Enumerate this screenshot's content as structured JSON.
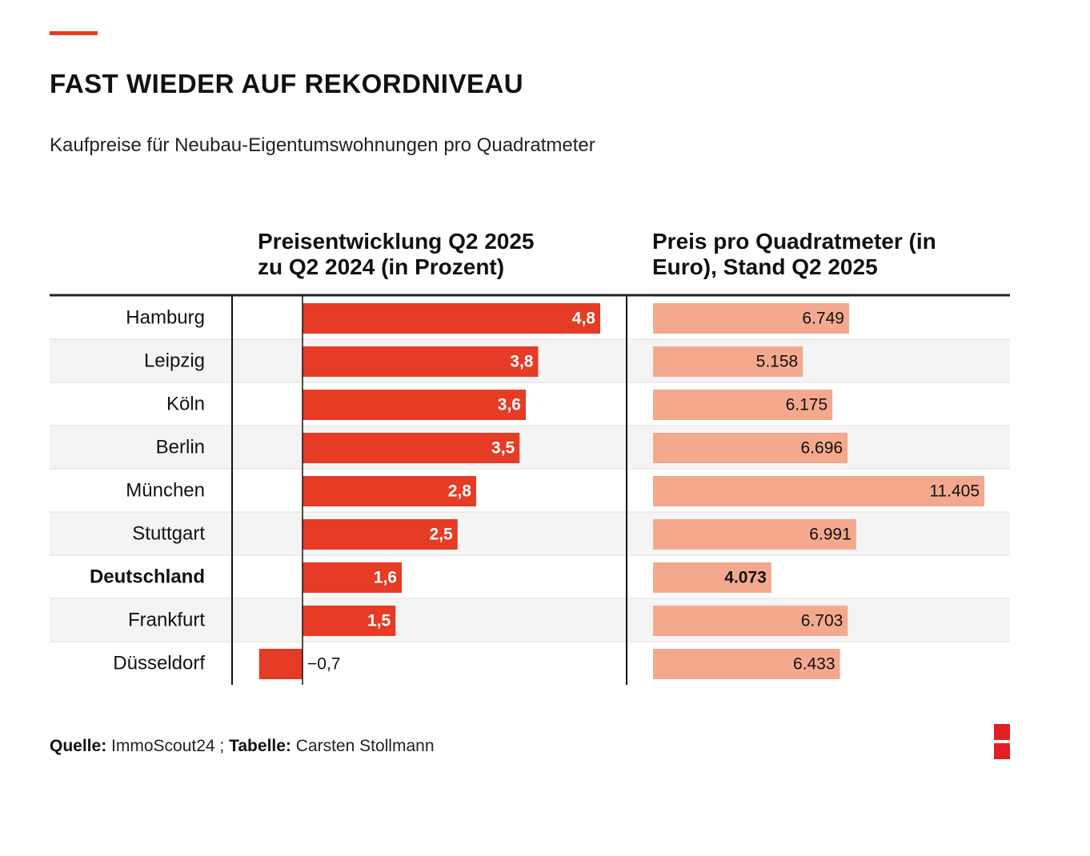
{
  "header": {
    "title": "FAST WIEDER AUF REKORDNIVEAU",
    "subtitle": "Kaufpreise für Neubau-Eigentumswohnungen pro Quadratmeter"
  },
  "columns": {
    "pct_heading_line1": "Preisentwicklung Q2 2025",
    "pct_heading_line2": "zu Q2 2024 (in Prozent)",
    "price_heading_line1": "Preis pro Quadratmeter (in",
    "price_heading_line2": "Euro), Stand Q2 2025"
  },
  "footer": {
    "source_label": "Quelle:",
    "source_value": "ImmoScout24 ;",
    "table_label": "Tabelle:",
    "table_value": "Carsten Stollmann"
  },
  "colors": {
    "accent": "#e63b24",
    "pct_bar": "#e63b24",
    "price_bar": "#f4a98e",
    "row_stripe": "#f4f4f4",
    "logo": "#e31e24"
  },
  "chart_data": {
    "type": "table",
    "rows": [
      {
        "city": "Hamburg",
        "change": 4.8,
        "change_label": "4,8",
        "price": 6749,
        "price_label": "6.749",
        "highlight": false
      },
      {
        "city": "Leipzig",
        "change": 3.8,
        "change_label": "3,8",
        "price": 5158,
        "price_label": "5.158",
        "highlight": false
      },
      {
        "city": "Köln",
        "change": 3.6,
        "change_label": "3,6",
        "price": 6175,
        "price_label": "6.175",
        "highlight": false
      },
      {
        "city": "Berlin",
        "change": 3.5,
        "change_label": "3,5",
        "price": 6696,
        "price_label": "6.696",
        "highlight": false
      },
      {
        "city": "München",
        "change": 2.8,
        "change_label": "2,8",
        "price": 11405,
        "price_label": "11.405",
        "highlight": false
      },
      {
        "city": "Stuttgart",
        "change": 2.5,
        "change_label": "2,5",
        "price": 6991,
        "price_label": "6.991",
        "highlight": false
      },
      {
        "city": "Deutschland",
        "change": 1.6,
        "change_label": "1,6",
        "price": 4073,
        "price_label": "4.073",
        "highlight": true
      },
      {
        "city": "Frankfurt",
        "change": 1.5,
        "change_label": "1,5",
        "price": 6703,
        "price_label": "6.703",
        "highlight": false
      },
      {
        "city": "Düsseldorf",
        "change": -0.7,
        "change_label": "−0,7",
        "price": 6433,
        "price_label": "6.433",
        "highlight": false
      }
    ],
    "change_axis_range": [
      -0.7,
      4.8
    ],
    "price_axis_range": [
      0,
      11405
    ]
  }
}
